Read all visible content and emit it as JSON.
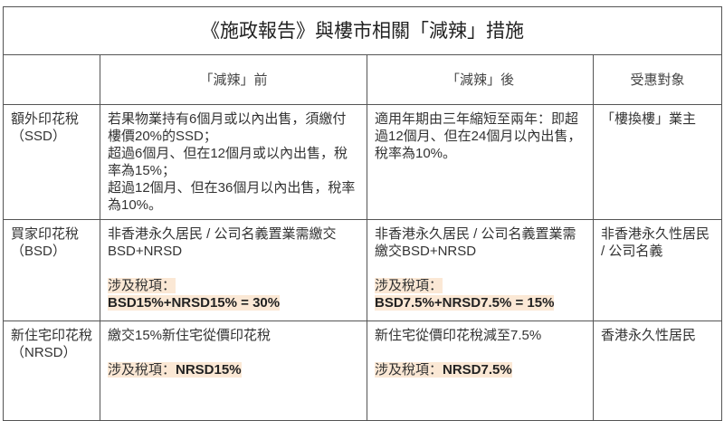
{
  "title": "《施政報告》與樓市相關「減辣」措施",
  "headers": [
    "",
    "「減辣」前",
    "「減辣」後",
    "受惠對象"
  ],
  "rows": [
    {
      "tax": "額外印花稅（SSD）",
      "before": [
        "若果物業持有6個月或以內出售，須繳付樓價20%的SSD；",
        "超過6個月、但在12個月或以內出售，稅率為15%；",
        "超過12個月、但在36個月以內出售，稅率為10%。"
      ],
      "after": "適用年期由三年縮短至兩年：即超過12個月、但在24個月以內出售，稅率為10%。",
      "beneficiary": "「樓換樓」業主"
    },
    {
      "tax": "買家印花稅（BSD）",
      "before": "非香港永久居民 / 公司名義置業需繳交BSD+NRSD",
      "before_label": "涉及稅項：",
      "before_total": "BSD15%+NRSD15% = 30%",
      "after": "非香港永久居民 / 公司名義置業需繳交BSD+NRSD",
      "after_label": "涉及稅項：",
      "after_total": "BSD7.5%+NRSD7.5% = 15%",
      "beneficiary": "非香港永久性居民 / 公司名義"
    },
    {
      "tax": "新住宅印花稅（NRSD）",
      "before": "繳交15%新住宅從價印花稅",
      "before_label": "涉及稅項：",
      "before_total": "NRSD15%",
      "after": "新住宅從價印花稅減至7.5%",
      "after_label": "涉及稅項：",
      "after_total": "NRSD7.5%",
      "beneficiary": "香港永久性居民"
    }
  ],
  "colors": {
    "highlight": "#fbe8d5",
    "border": "#555555"
  }
}
